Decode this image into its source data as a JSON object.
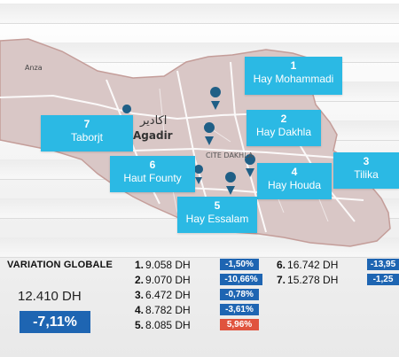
{
  "map": {
    "place_labels": [
      {
        "id": "anza",
        "text": "Anza"
      },
      {
        "id": "agadir",
        "text": "Agadir"
      },
      {
        "id": "agadir-ar",
        "text": "اكادير"
      },
      {
        "id": "cite-dakhla",
        "text": "CITE DAKHLA"
      }
    ],
    "neighborhoods": [
      {
        "id": "1",
        "number": "1",
        "name": "Hay Mohammadi"
      },
      {
        "id": "2",
        "number": "2",
        "name": "Hay Dakhla"
      },
      {
        "id": "3",
        "number": "3",
        "name": "Tilika"
      },
      {
        "id": "4",
        "number": "4",
        "name": "Hay Houda"
      },
      {
        "id": "5",
        "number": "5",
        "name": "Hay Essalam"
      },
      {
        "id": "6",
        "number": "6",
        "name": "Haut Founty"
      },
      {
        "id": "7",
        "number": "7",
        "name": "Taborjt"
      }
    ],
    "colors": {
      "label_bg": "#2bb9e4",
      "city_fill": "#d9c7c6",
      "outline": "#c49d99",
      "pin": "#1f5f86",
      "road": "#ffffff"
    }
  },
  "variation_globale": {
    "title": "VARIATION GLOBALE",
    "price": "12.410 DH",
    "change": "-7,11%"
  },
  "prices": [
    {
      "rank": "1.",
      "price": "9.058 DH",
      "change": "-1,50%",
      "sign": "neg"
    },
    {
      "rank": "2.",
      "price": "9.070 DH",
      "change": "-10,66%",
      "sign": "neg"
    },
    {
      "rank": "3.",
      "price": "6.472 DH",
      "change": "-0,78%",
      "sign": "neg"
    },
    {
      "rank": "4.",
      "price": "8.782 DH",
      "change": "-3,61%",
      "sign": "neg"
    },
    {
      "rank": "5.",
      "price": "8.085 DH",
      "change": "5,96%",
      "sign": "pos"
    },
    {
      "rank": "6.",
      "price": "16.742 DH",
      "change": "-13,95",
      "sign": "neg"
    },
    {
      "rank": "7.",
      "price": "15.278 DH",
      "change": "-1,25",
      "sign": "neg"
    }
  ],
  "colors": {
    "negative": "#1e65b2",
    "positive": "#e0533d"
  }
}
